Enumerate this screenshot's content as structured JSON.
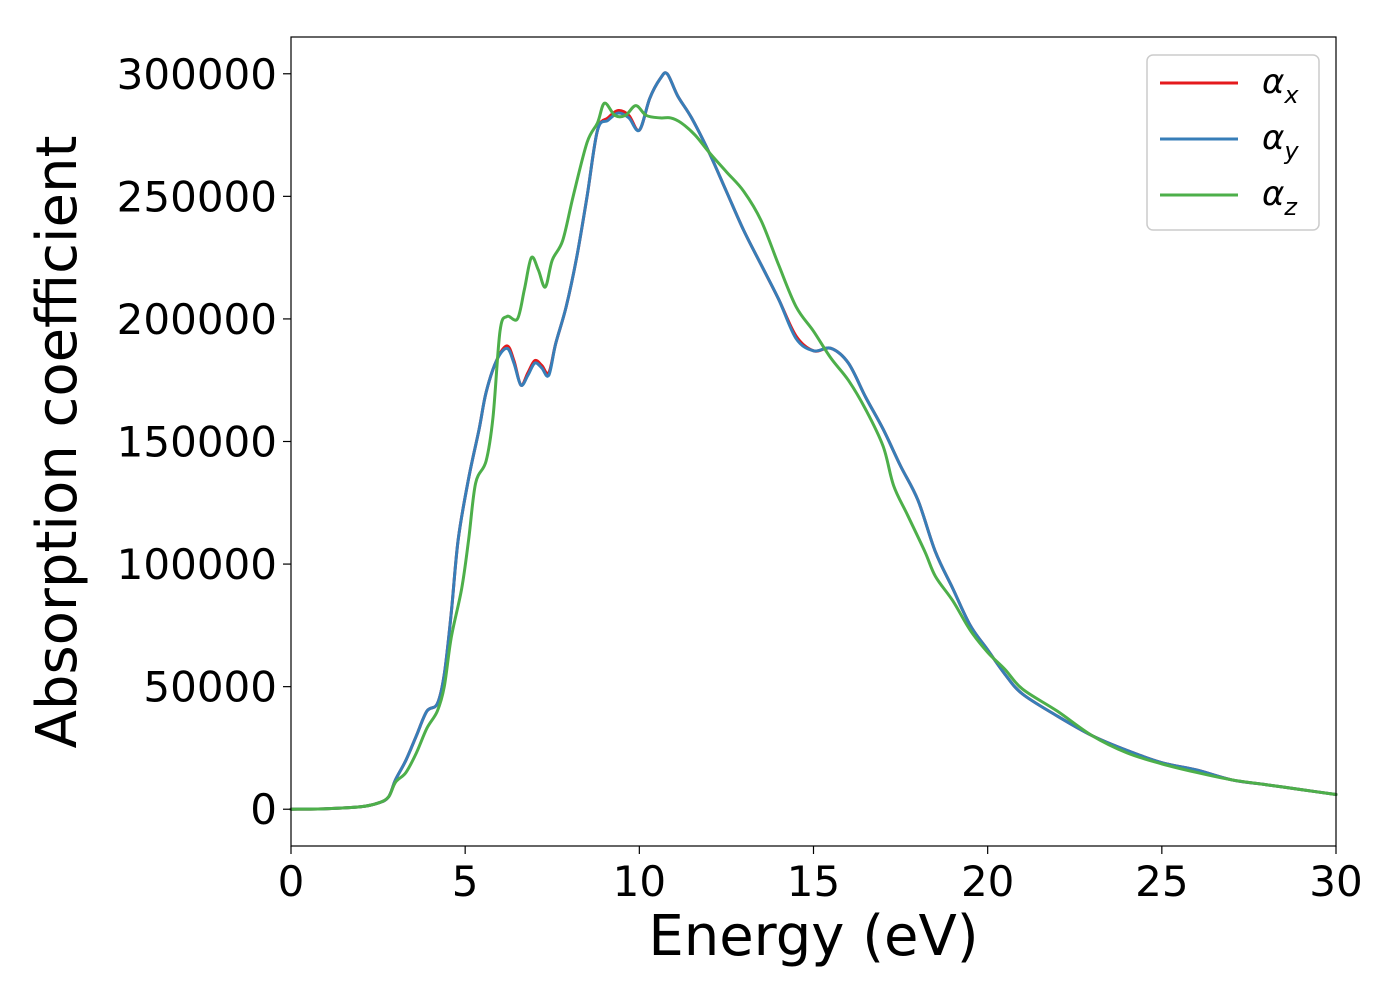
{
  "chart_data": {
    "type": "line",
    "title": "",
    "xlabel": "Energy (eV)",
    "ylabel": "Absorption coefficient",
    "xlim": [
      0,
      30
    ],
    "ylim": [
      -15000,
      315000
    ],
    "xticks": [
      0,
      5,
      10,
      15,
      20,
      25,
      30
    ],
    "yticks": [
      0,
      50000,
      100000,
      150000,
      200000,
      250000,
      300000
    ],
    "grid": false,
    "legend_position": "top-right",
    "series": [
      {
        "name": "α",
        "subscript": "x",
        "color": "#e41a1c",
        "points": [
          [
            0,
            0
          ],
          [
            1,
            200
          ],
          [
            2,
            1000
          ],
          [
            2.5,
            2500
          ],
          [
            2.8,
            5000
          ],
          [
            3,
            12000
          ],
          [
            3.3,
            20000
          ],
          [
            3.6,
            30000
          ],
          [
            3.9,
            40000
          ],
          [
            4.2,
            43000
          ],
          [
            4.4,
            55000
          ],
          [
            4.6,
            80000
          ],
          [
            4.8,
            110000
          ],
          [
            5.1,
            135000
          ],
          [
            5.4,
            155000
          ],
          [
            5.6,
            170000
          ],
          [
            5.9,
            183000
          ],
          [
            6.2,
            189000
          ],
          [
            6.4,
            183000
          ],
          [
            6.6,
            173000
          ],
          [
            6.8,
            178000
          ],
          [
            7,
            183000
          ],
          [
            7.2,
            181000
          ],
          [
            7.4,
            178000
          ],
          [
            7.6,
            190000
          ],
          [
            7.9,
            205000
          ],
          [
            8.2,
            225000
          ],
          [
            8.5,
            250000
          ],
          [
            8.8,
            277000
          ],
          [
            9.1,
            282000
          ],
          [
            9.4,
            285000
          ],
          [
            9.7,
            283000
          ],
          [
            10,
            277000
          ],
          [
            10.3,
            290000
          ],
          [
            10.6,
            298000
          ],
          [
            10.8,
            300000
          ],
          [
            11.1,
            291000
          ],
          [
            11.5,
            282000
          ],
          [
            12,
            268000
          ],
          [
            12.5,
            252000
          ],
          [
            13,
            236000
          ],
          [
            13.5,
            222000
          ],
          [
            14,
            208000
          ],
          [
            14.5,
            193000
          ],
          [
            15,
            187000
          ],
          [
            15.5,
            188000
          ],
          [
            16,
            182000
          ],
          [
            16.5,
            168000
          ],
          [
            17,
            155000
          ],
          [
            17.5,
            140000
          ],
          [
            18,
            126000
          ],
          [
            18.5,
            105000
          ],
          [
            19,
            90000
          ],
          [
            19.5,
            75000
          ],
          [
            20,
            65000
          ],
          [
            20.5,
            55000
          ],
          [
            21,
            47000
          ],
          [
            22,
            38000
          ],
          [
            23,
            30000
          ],
          [
            24,
            24000
          ],
          [
            25,
            19000
          ],
          [
            26,
            16000
          ],
          [
            27,
            12000
          ],
          [
            28,
            10000
          ],
          [
            29,
            8000
          ],
          [
            30,
            6000
          ]
        ]
      },
      {
        "name": "α",
        "subscript": "y",
        "color": "#377eb8",
        "points": [
          [
            0,
            0
          ],
          [
            1,
            200
          ],
          [
            2,
            1000
          ],
          [
            2.5,
            2500
          ],
          [
            2.8,
            5000
          ],
          [
            3,
            12000
          ],
          [
            3.3,
            20000
          ],
          [
            3.6,
            30000
          ],
          [
            3.9,
            40000
          ],
          [
            4.2,
            43000
          ],
          [
            4.4,
            55000
          ],
          [
            4.6,
            80000
          ],
          [
            4.8,
            110000
          ],
          [
            5.1,
            135000
          ],
          [
            5.4,
            155000
          ],
          [
            5.6,
            170000
          ],
          [
            5.9,
            183000
          ],
          [
            6.2,
            188000
          ],
          [
            6.4,
            182000
          ],
          [
            6.6,
            173000
          ],
          [
            6.8,
            177000
          ],
          [
            7,
            182000
          ],
          [
            7.2,
            180000
          ],
          [
            7.4,
            177000
          ],
          [
            7.6,
            190000
          ],
          [
            7.9,
            205000
          ],
          [
            8.2,
            225000
          ],
          [
            8.5,
            250000
          ],
          [
            8.8,
            277000
          ],
          [
            9.1,
            281000
          ],
          [
            9.4,
            284000
          ],
          [
            9.7,
            282000
          ],
          [
            10,
            277000
          ],
          [
            10.3,
            290000
          ],
          [
            10.6,
            298000
          ],
          [
            10.8,
            300000
          ],
          [
            11.1,
            291000
          ],
          [
            11.5,
            282000
          ],
          [
            12,
            268000
          ],
          [
            12.5,
            252000
          ],
          [
            13,
            236000
          ],
          [
            13.5,
            222000
          ],
          [
            14,
            208000
          ],
          [
            14.5,
            192000
          ],
          [
            15,
            187000
          ],
          [
            15.5,
            188000
          ],
          [
            16,
            182000
          ],
          [
            16.5,
            168000
          ],
          [
            17,
            155000
          ],
          [
            17.5,
            140000
          ],
          [
            18,
            126000
          ],
          [
            18.5,
            105000
          ],
          [
            19,
            90000
          ],
          [
            19.5,
            75000
          ],
          [
            20,
            65000
          ],
          [
            20.5,
            55000
          ],
          [
            21,
            47000
          ],
          [
            22,
            38000
          ],
          [
            23,
            30000
          ],
          [
            24,
            24000
          ],
          [
            25,
            19000
          ],
          [
            26,
            16000
          ],
          [
            27,
            12000
          ],
          [
            28,
            10000
          ],
          [
            29,
            8000
          ],
          [
            30,
            6000
          ]
        ]
      },
      {
        "name": "α",
        "subscript": "z",
        "color": "#4daf4a",
        "points": [
          [
            0,
            0
          ],
          [
            1,
            200
          ],
          [
            2,
            1000
          ],
          [
            2.5,
            2500
          ],
          [
            2.8,
            5000
          ],
          [
            3,
            11000
          ],
          [
            3.3,
            15000
          ],
          [
            3.6,
            23000
          ],
          [
            3.9,
            33000
          ],
          [
            4.2,
            40000
          ],
          [
            4.4,
            50000
          ],
          [
            4.6,
            70000
          ],
          [
            4.9,
            90000
          ],
          [
            5.1,
            110000
          ],
          [
            5.3,
            133000
          ],
          [
            5.6,
            142000
          ],
          [
            5.8,
            160000
          ],
          [
            6,
            195000
          ],
          [
            6.2,
            201000
          ],
          [
            6.5,
            200000
          ],
          [
            6.7,
            212000
          ],
          [
            6.9,
            225000
          ],
          [
            7.1,
            220000
          ],
          [
            7.3,
            213000
          ],
          [
            7.5,
            224000
          ],
          [
            7.8,
            232000
          ],
          [
            8.1,
            250000
          ],
          [
            8.5,
            272000
          ],
          [
            8.8,
            280000
          ],
          [
            9,
            288000
          ],
          [
            9.3,
            283000
          ],
          [
            9.6,
            283000
          ],
          [
            9.9,
            287000
          ],
          [
            10.2,
            283000
          ],
          [
            10.6,
            282000
          ],
          [
            10.9,
            282000
          ],
          [
            11.2,
            280000
          ],
          [
            11.6,
            275000
          ],
          [
            12,
            268000
          ],
          [
            12.5,
            260000
          ],
          [
            13,
            252000
          ],
          [
            13.5,
            240000
          ],
          [
            14,
            222000
          ],
          [
            14.5,
            205000
          ],
          [
            15,
            195000
          ],
          [
            15.5,
            184000
          ],
          [
            16,
            175000
          ],
          [
            16.5,
            163000
          ],
          [
            17,
            148000
          ],
          [
            17.3,
            132000
          ],
          [
            17.7,
            120000
          ],
          [
            18.2,
            105000
          ],
          [
            18.5,
            95000
          ],
          [
            19,
            85000
          ],
          [
            19.5,
            73000
          ],
          [
            20,
            64000
          ],
          [
            20.5,
            57000
          ],
          [
            21,
            49000
          ],
          [
            22,
            40000
          ],
          [
            23,
            30000
          ],
          [
            24,
            23000
          ],
          [
            25,
            18500
          ],
          [
            26,
            15000
          ],
          [
            27,
            12000
          ],
          [
            28,
            10000
          ],
          [
            29,
            8000
          ],
          [
            30,
            6000
          ]
        ]
      }
    ]
  }
}
